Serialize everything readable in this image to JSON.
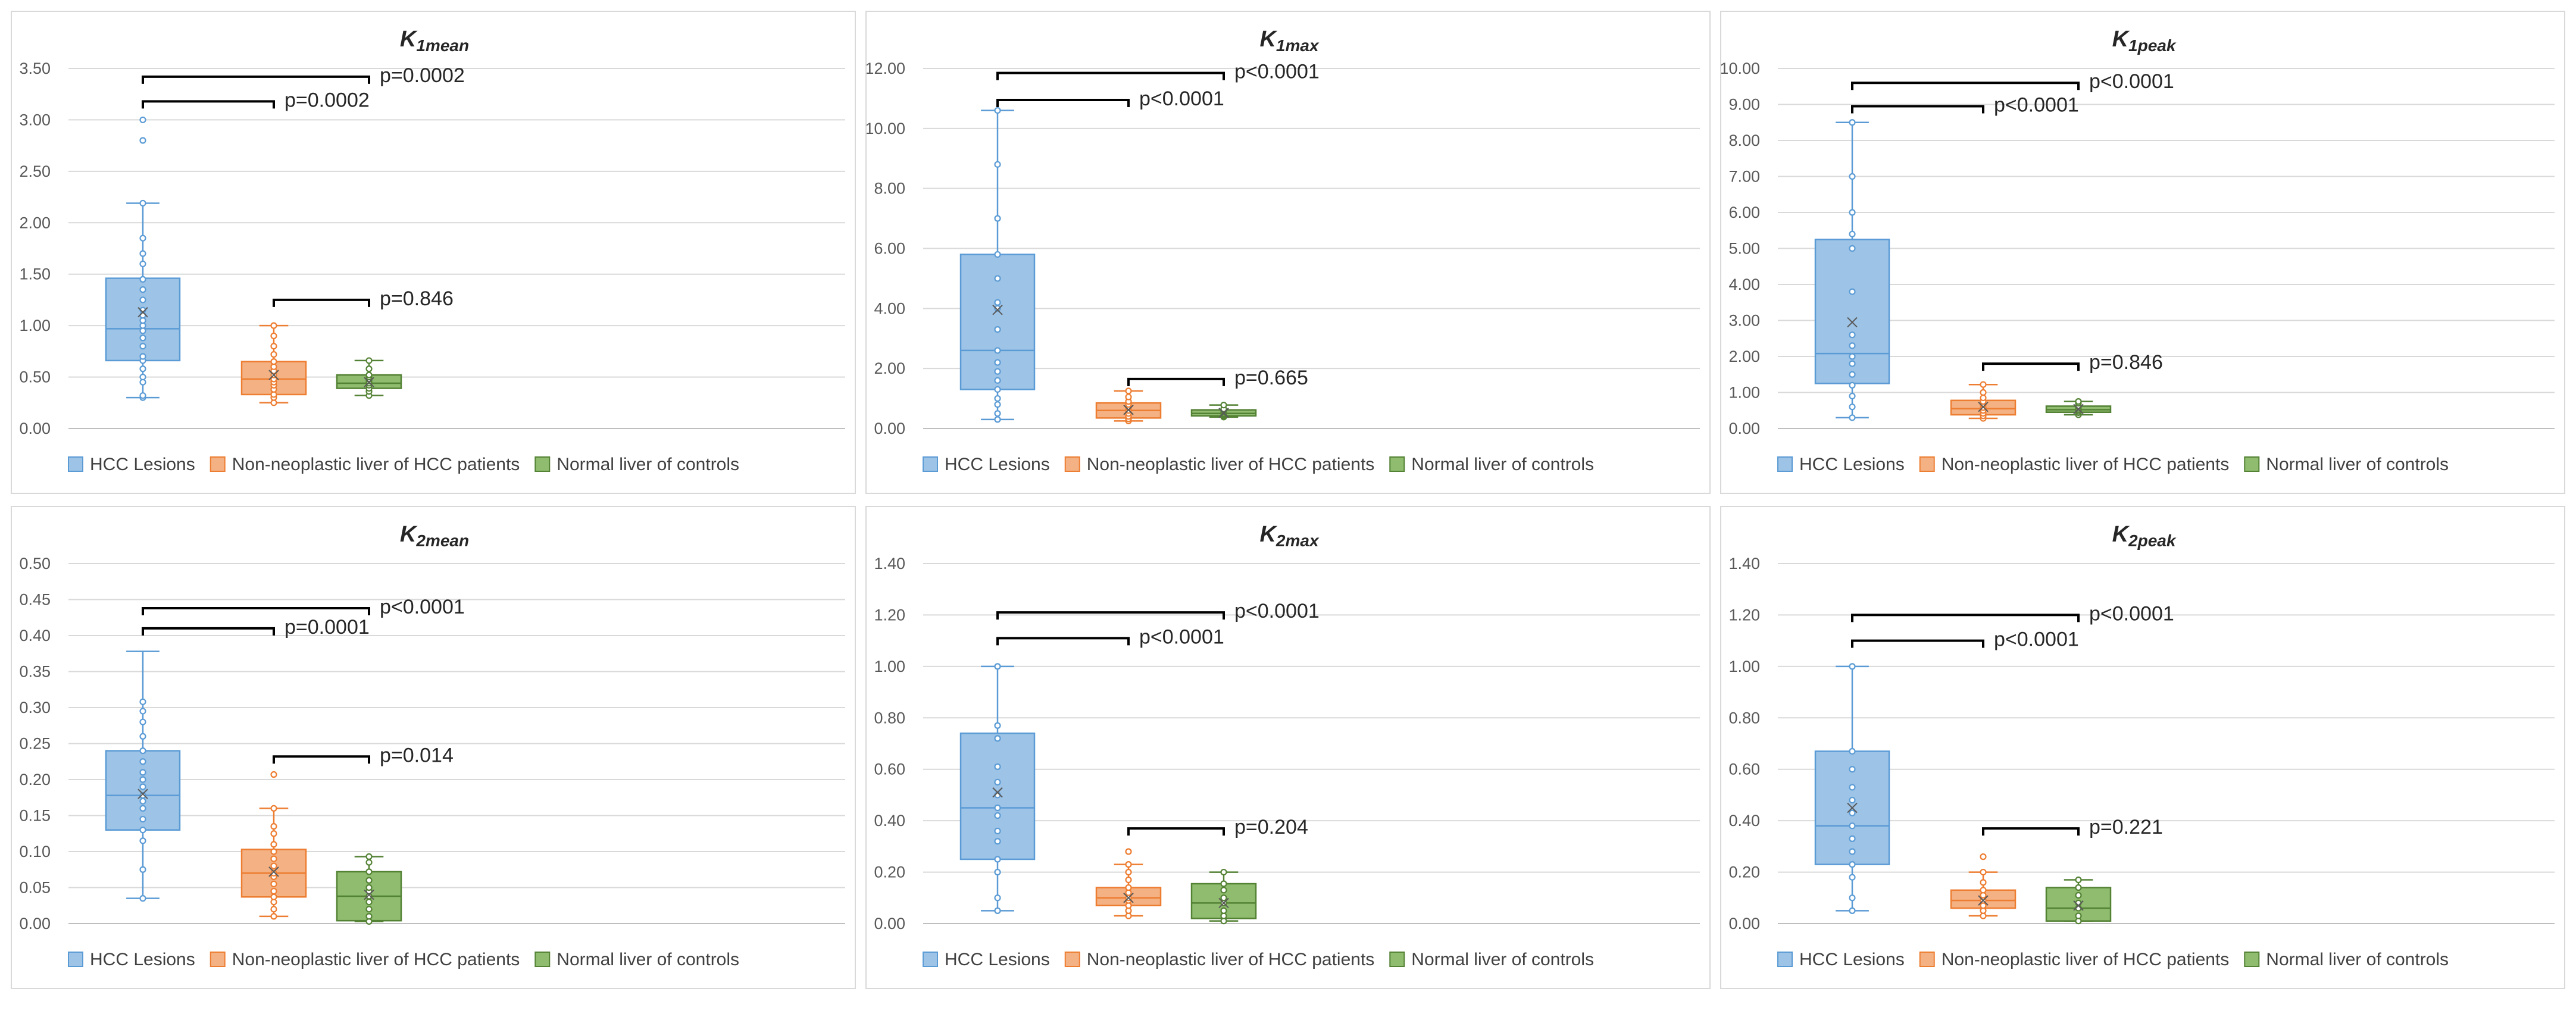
{
  "colors": {
    "hcc": "#5b9bd5",
    "hcc_fill": "#9dc3e6",
    "nonneo": "#ed7d31",
    "nonneo_fill": "#f4b183",
    "normal": "#548235",
    "normal_fill": "#8fbc6f",
    "grid": "#d9d9d9",
    "bracket": "#000000"
  },
  "legend": [
    "HCC Lesions",
    "Non-neoplastic liver of HCC patients",
    "Normal liver of controls"
  ],
  "chart_data": [
    {
      "type": "box",
      "title": "K",
      "title_sub": "1mean",
      "ylim": [
        0,
        3.5
      ],
      "yticks": [
        "0.00",
        "0.50",
        "1.00",
        "1.50",
        "2.00",
        "2.50",
        "3.00",
        "3.50"
      ],
      "series": [
        {
          "name": "HCC Lesions",
          "min": 0.3,
          "q1": 0.66,
          "median": 0.97,
          "q3": 1.46,
          "max": 2.19,
          "mean": 1.13,
          "points": [
            0.3,
            0.32,
            0.45,
            0.5,
            0.58,
            0.66,
            0.7,
            0.8,
            0.88,
            0.95,
            1.0,
            1.05,
            1.1,
            1.15,
            1.25,
            1.35,
            1.45,
            1.6,
            1.7,
            1.85,
            2.19,
            2.8,
            3.0
          ]
        },
        {
          "name": "Non-neoplastic liver of HCC patients",
          "min": 0.25,
          "q1": 0.33,
          "median": 0.48,
          "q3": 0.65,
          "max": 1.0,
          "mean": 0.52,
          "points": [
            0.25,
            0.3,
            0.33,
            0.38,
            0.42,
            0.45,
            0.48,
            0.52,
            0.56,
            0.6,
            0.65,
            0.72,
            0.8,
            0.9,
            1.0
          ]
        },
        {
          "name": "Normal liver of controls",
          "min": 0.32,
          "q1": 0.39,
          "median": 0.44,
          "q3": 0.52,
          "max": 0.66,
          "mean": 0.45,
          "points": [
            0.32,
            0.36,
            0.39,
            0.42,
            0.44,
            0.46,
            0.48,
            0.5,
            0.52,
            0.58,
            0.66
          ]
        }
      ],
      "brackets": [
        {
          "from": 0,
          "to": 2,
          "y": 3.42,
          "label": "p=0.0002"
        },
        {
          "from": 0,
          "to": 1,
          "y": 3.18,
          "label": "p=0.0002"
        },
        {
          "from": 1,
          "to": 2,
          "y": 1.25,
          "label": "p=0.846"
        }
      ]
    },
    {
      "type": "box",
      "title": "K",
      "title_sub": "1max",
      "ylim": [
        0,
        12
      ],
      "yticks": [
        "0.00",
        "2.00",
        "4.00",
        "6.00",
        "8.00",
        "10.00",
        "12.00"
      ],
      "series": [
        {
          "name": "HCC Lesions",
          "min": 0.3,
          "q1": 1.3,
          "median": 2.6,
          "q3": 5.8,
          "max": 10.6,
          "mean": 3.95,
          "points": [
            0.3,
            0.5,
            0.8,
            1.0,
            1.3,
            1.6,
            1.9,
            2.2,
            2.6,
            3.3,
            4.0,
            4.2,
            5.0,
            5.8,
            7.0,
            8.8,
            10.6
          ]
        },
        {
          "name": "Non-neoplastic liver of HCC patients",
          "min": 0.25,
          "q1": 0.35,
          "median": 0.6,
          "q3": 0.85,
          "max": 1.25,
          "mean": 0.62,
          "points": [
            0.25,
            0.32,
            0.4,
            0.5,
            0.6,
            0.7,
            0.8,
            0.9,
            1.05,
            1.25
          ]
        },
        {
          "name": "Normal liver of controls",
          "min": 0.38,
          "q1": 0.42,
          "median": 0.5,
          "q3": 0.62,
          "max": 0.78,
          "mean": 0.52,
          "points": [
            0.38,
            0.42,
            0.46,
            0.5,
            0.55,
            0.6,
            0.65,
            0.78
          ]
        }
      ],
      "brackets": [
        {
          "from": 0,
          "to": 2,
          "y": 11.85,
          "label": "p<0.0001"
        },
        {
          "from": 0,
          "to": 1,
          "y": 10.95,
          "label": "p<0.0001"
        },
        {
          "from": 1,
          "to": 2,
          "y": 1.65,
          "label": "p=0.665"
        }
      ]
    },
    {
      "type": "box",
      "title": "K",
      "title_sub": "1peak",
      "ylim": [
        0,
        10
      ],
      "yticks": [
        "0.00",
        "1.00",
        "2.00",
        "3.00",
        "4.00",
        "5.00",
        "6.00",
        "7.00",
        "8.00",
        "9.00",
        "10.00"
      ],
      "series": [
        {
          "name": "HCC Lesions",
          "min": 0.3,
          "q1": 1.25,
          "median": 2.08,
          "q3": 5.25,
          "max": 8.5,
          "mean": 2.95,
          "points": [
            0.3,
            0.6,
            0.9,
            1.2,
            1.5,
            1.8,
            2.0,
            2.3,
            2.6,
            3.8,
            5.0,
            5.4,
            6.0,
            7.0,
            8.5
          ]
        },
        {
          "name": "Non-neoplastic liver of HCC patients",
          "min": 0.28,
          "q1": 0.38,
          "median": 0.55,
          "q3": 0.78,
          "max": 1.22,
          "mean": 0.6,
          "points": [
            0.28,
            0.35,
            0.42,
            0.5,
            0.58,
            0.66,
            0.75,
            0.85,
            1.0,
            1.22
          ]
        },
        {
          "name": "Normal liver of controls",
          "min": 0.38,
          "q1": 0.45,
          "median": 0.52,
          "q3": 0.62,
          "max": 0.75,
          "mean": 0.54,
          "points": [
            0.38,
            0.44,
            0.48,
            0.52,
            0.56,
            0.62,
            0.7,
            0.75
          ]
        }
      ],
      "brackets": [
        {
          "from": 0,
          "to": 2,
          "y": 9.6,
          "label": "p<0.0001"
        },
        {
          "from": 0,
          "to": 1,
          "y": 8.95,
          "label": "p<0.0001"
        },
        {
          "from": 1,
          "to": 2,
          "y": 1.8,
          "label": "p=0.846"
        }
      ]
    },
    {
      "type": "box",
      "title": "K",
      "title_sub": "2mean",
      "ylim": [
        0,
        0.5
      ],
      "yticks": [
        "0.00",
        "0.05",
        "0.10",
        "0.15",
        "0.20",
        "0.25",
        "0.30",
        "0.35",
        "0.40",
        "0.45",
        "0.50"
      ],
      "series": [
        {
          "name": "HCC Lesions",
          "min": 0.035,
          "q1": 0.13,
          "median": 0.178,
          "q3": 0.24,
          "max": 0.378,
          "mean": 0.18,
          "points": [
            0.035,
            0.075,
            0.115,
            0.13,
            0.145,
            0.16,
            0.17,
            0.178,
            0.19,
            0.2,
            0.21,
            0.225,
            0.24,
            0.26,
            0.28,
            0.295,
            0.308
          ]
        },
        {
          "name": "Non-neoplastic liver of HCC patients",
          "min": 0.01,
          "q1": 0.037,
          "median": 0.07,
          "q3": 0.103,
          "max": 0.16,
          "mean": 0.072,
          "points": [
            0.01,
            0.02,
            0.03,
            0.037,
            0.045,
            0.055,
            0.065,
            0.07,
            0.08,
            0.09,
            0.1,
            0.11,
            0.125,
            0.135,
            0.16,
            0.207
          ]
        },
        {
          "name": "Normal liver of controls",
          "min": 0.003,
          "q1": 0.004,
          "median": 0.038,
          "q3": 0.072,
          "max": 0.093,
          "mean": 0.04,
          "points": [
            0.003,
            0.01,
            0.02,
            0.03,
            0.038,
            0.045,
            0.05,
            0.06,
            0.072,
            0.085,
            0.093
          ]
        }
      ],
      "brackets": [
        {
          "from": 0,
          "to": 2,
          "y": 0.438,
          "label": "p<0.0001"
        },
        {
          "from": 0,
          "to": 1,
          "y": 0.41,
          "label": "p=0.0001"
        },
        {
          "from": 1,
          "to": 2,
          "y": 0.232,
          "label": "p=0.014"
        }
      ]
    },
    {
      "type": "box",
      "title": "K",
      "title_sub": "2max",
      "ylim": [
        0,
        1.4
      ],
      "yticks": [
        "0.00",
        "0.20",
        "0.40",
        "0.60",
        "0.80",
        "1.00",
        "1.20",
        "1.40"
      ],
      "series": [
        {
          "name": "HCC Lesions",
          "min": 0.05,
          "q1": 0.25,
          "median": 0.45,
          "q3": 0.74,
          "max": 1.0,
          "mean": 0.51,
          "points": [
            0.05,
            0.1,
            0.2,
            0.25,
            0.32,
            0.36,
            0.42,
            0.45,
            0.5,
            0.55,
            0.61,
            0.72,
            0.77,
            1.0
          ]
        },
        {
          "name": "Non-neoplastic liver of HCC patients",
          "min": 0.03,
          "q1": 0.07,
          "median": 0.1,
          "q3": 0.14,
          "max": 0.23,
          "mean": 0.1,
          "points": [
            0.03,
            0.05,
            0.07,
            0.09,
            0.1,
            0.12,
            0.14,
            0.17,
            0.2,
            0.23,
            0.28
          ]
        },
        {
          "name": "Normal liver of controls",
          "min": 0.01,
          "q1": 0.02,
          "median": 0.08,
          "q3": 0.155,
          "max": 0.2,
          "mean": 0.08,
          "points": [
            0.01,
            0.03,
            0.05,
            0.08,
            0.1,
            0.13,
            0.155,
            0.2
          ]
        }
      ],
      "brackets": [
        {
          "from": 0,
          "to": 2,
          "y": 1.21,
          "label": "p<0.0001"
        },
        {
          "from": 0,
          "to": 1,
          "y": 1.11,
          "label": "p<0.0001"
        },
        {
          "from": 1,
          "to": 2,
          "y": 0.37,
          "label": "p=0.204"
        }
      ]
    },
    {
      "type": "box",
      "title": "K",
      "title_sub": "2peak",
      "ylim": [
        0,
        1.4
      ],
      "yticks": [
        "0.00",
        "0.20",
        "0.40",
        "0.60",
        "0.80",
        "1.00",
        "1.20",
        "1.40"
      ],
      "series": [
        {
          "name": "HCC Lesions",
          "min": 0.05,
          "q1": 0.23,
          "median": 0.38,
          "q3": 0.67,
          "max": 1.0,
          "mean": 0.45,
          "points": [
            0.05,
            0.1,
            0.18,
            0.23,
            0.28,
            0.33,
            0.38,
            0.43,
            0.48,
            0.53,
            0.6,
            0.67,
            1.0
          ]
        },
        {
          "name": "Non-neoplastic liver of HCC patients",
          "min": 0.03,
          "q1": 0.06,
          "median": 0.09,
          "q3": 0.13,
          "max": 0.2,
          "mean": 0.09,
          "points": [
            0.03,
            0.05,
            0.07,
            0.09,
            0.11,
            0.13,
            0.16,
            0.2,
            0.26
          ]
        },
        {
          "name": "Normal liver of controls",
          "min": 0.01,
          "q1": 0.01,
          "median": 0.06,
          "q3": 0.14,
          "max": 0.17,
          "mean": 0.07,
          "points": [
            0.01,
            0.03,
            0.06,
            0.08,
            0.11,
            0.14,
            0.17
          ]
        }
      ],
      "brackets": [
        {
          "from": 0,
          "to": 2,
          "y": 1.2,
          "label": "p<0.0001"
        },
        {
          "from": 0,
          "to": 1,
          "y": 1.1,
          "label": "p<0.0001"
        },
        {
          "from": 1,
          "to": 2,
          "y": 0.37,
          "label": "p=0.221"
        }
      ]
    }
  ]
}
